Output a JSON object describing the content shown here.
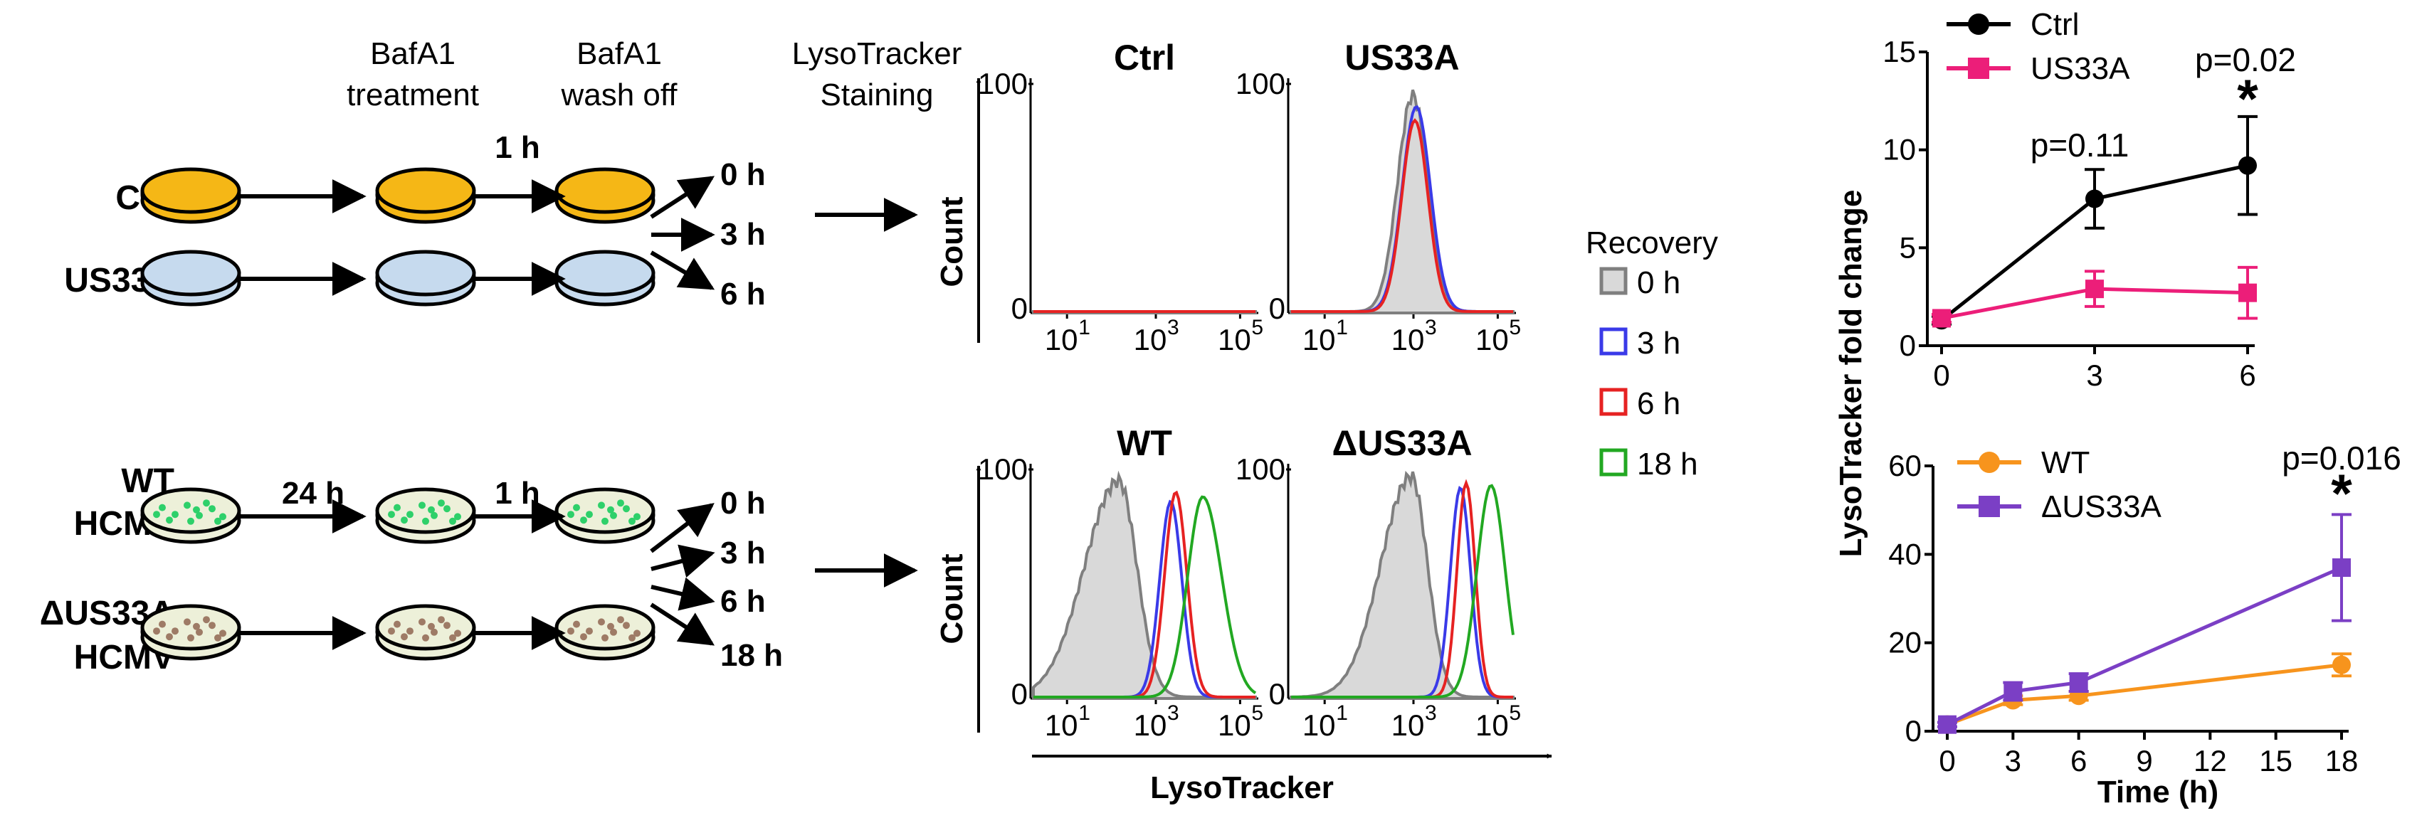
{
  "schematic": {
    "col_headers": {
      "bafa1_treatment": [
        "BafA1",
        "treatment"
      ],
      "bafa1_wash": [
        "BafA1",
        "wash off"
      ],
      "lysotracker": [
        "LysoTracker",
        "Staining"
      ]
    },
    "top_rows": [
      "Ctrl",
      "US33A"
    ],
    "top_step_label": "1 h",
    "top_times": [
      "0 h",
      "3 h",
      "6 h"
    ],
    "bottom_rows": [
      [
        "WT",
        "HCMV"
      ],
      [
        "ΔUS33A",
        "HCMV"
      ]
    ],
    "bottom_step_labels": [
      "24 h",
      "1 h"
    ],
    "bottom_times": [
      "0 h",
      "3 h",
      "6 h",
      "18 h"
    ],
    "colors": {
      "ctrl_dish": "#f5b716",
      "us33a_dish": "#c6daee",
      "infected_dish": "#edf0d9",
      "wt_dots": "#2ed06a",
      "mut_dots": "#9e7b66"
    }
  },
  "flow": {
    "ylabel": "Count",
    "xlabel": "LysoTracker",
    "y_ticks": [
      "100",
      "0"
    ],
    "x_ticks": [
      [
        "10",
        "1"
      ],
      [
        "10",
        "3"
      ],
      [
        "10",
        "5"
      ]
    ],
    "panel_titles": [
      "Ctrl",
      "US33A",
      "WT",
      "ΔUS33A"
    ],
    "legend_title": "Recovery",
    "legend": [
      {
        "label": "0 h",
        "color": "#7f7f7f"
      },
      {
        "label": "3 h",
        "color": "#3a3ae8"
      },
      {
        "label": "6 h",
        "color": "#e62222"
      },
      {
        "label": "18 h",
        "color": "#22a822"
      }
    ],
    "fill_color": "#d9d9d9"
  },
  "chart_data": [
    {
      "type": "line",
      "ylabel": "LysoTracker fold change",
      "x_ticks": [
        "0",
        "3",
        "6"
      ],
      "y_ticks": [
        "0",
        "5",
        "10",
        "15"
      ],
      "xlim": [
        0,
        6
      ],
      "ylim": [
        0,
        15
      ],
      "series": [
        {
          "name": "Ctrl",
          "color": "#000000",
          "marker": "circle",
          "x": [
            0,
            3,
            6
          ],
          "y": [
            1.3,
            7.5,
            9.2
          ],
          "err": [
            0.2,
            1.5,
            2.5
          ]
        },
        {
          "name": "US33A",
          "color": "#ec1e79",
          "marker": "square",
          "x": [
            0,
            3,
            6
          ],
          "y": [
            1.4,
            2.9,
            2.7
          ],
          "err": [
            0.2,
            0.9,
            1.3
          ]
        }
      ],
      "annotations": [
        {
          "x": 3,
          "text": "p=0.11",
          "star": false
        },
        {
          "x": 6,
          "text": "p=0.02",
          "star": true
        }
      ]
    },
    {
      "type": "line",
      "xlabel": "Time (h)",
      "x_ticks": [
        "0",
        "3",
        "6",
        "9",
        "12",
        "15",
        "18"
      ],
      "y_ticks": [
        "0",
        "20",
        "40",
        "60"
      ],
      "xlim": [
        0,
        18
      ],
      "ylim": [
        0,
        60
      ],
      "series": [
        {
          "name": "WT",
          "color": "#f7941d",
          "marker": "circle",
          "x": [
            0,
            3,
            6,
            18
          ],
          "y": [
            1.5,
            7,
            8,
            15
          ],
          "err": [
            0.5,
            1,
            1,
            2.5
          ]
        },
        {
          "name": "ΔUS33A",
          "color": "#7b3fc5",
          "marker": "square",
          "x": [
            0,
            3,
            6,
            18
          ],
          "y": [
            1.5,
            9,
            11,
            37
          ],
          "err": [
            0.5,
            2,
            2,
            12
          ]
        }
      ],
      "annotations": [
        {
          "x": 18,
          "text": "p=0.016",
          "star": true
        }
      ]
    }
  ]
}
